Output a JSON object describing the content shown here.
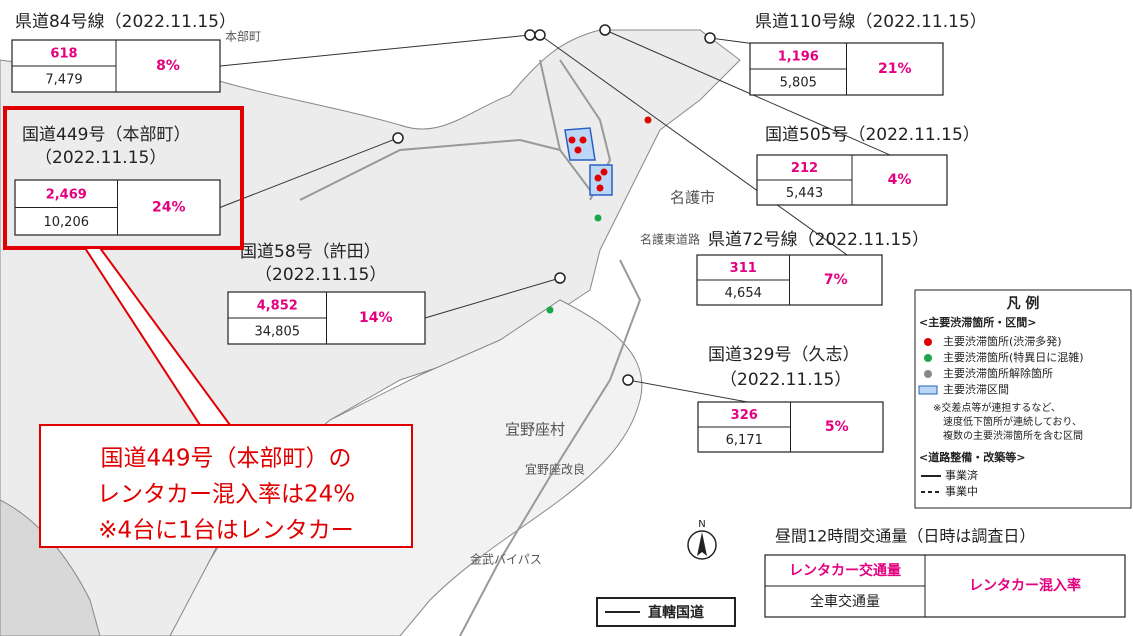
{
  "stations": [
    {
      "name": "県道84号線",
      "date": "（2022.11.15）",
      "rental": "618",
      "total": "7,479",
      "rate": "8%"
    },
    {
      "name": "県道110号線",
      "date": "（2022.11.15）",
      "rental": "1,196",
      "total": "5,805",
      "rate": "21%"
    },
    {
      "name": "国道505号",
      "date": "（2022.11.15）",
      "rental": "212",
      "total": "5,443",
      "rate": "4%"
    },
    {
      "name": "国道449号（本部町）",
      "date": "（2022.11.15）",
      "rental": "2,469",
      "total": "10,206",
      "rate": "24%"
    },
    {
      "name": "国道58号（許田）",
      "date": "（2022.11.15）",
      "rental": "4,852",
      "total": "34,805",
      "rate": "14%"
    },
    {
      "name": "県道72号線",
      "date": "（2022.11.15）",
      "rental": "311",
      "total": "4,654",
      "rate": "7%"
    },
    {
      "name": "国道329号（久志）",
      "date": "（2022.11.15）",
      "rental": "326",
      "total": "6,171",
      "rate": "5%"
    }
  ],
  "callout": [
    "国道449号（本部町）の",
    "レンタカー混入率は24%",
    "※4台に1台はレンタカー"
  ],
  "legend": {
    "title": "凡 例",
    "section1": "<主要渋滞箇所・区間>",
    "items": [
      "主要渋滞箇所(渋滞多発)",
      "主要渋滞箇所(特異日に混雑)",
      "主要渋滞箇所解除箇所",
      "主要渋滞区間"
    ],
    "note": [
      "※交差点等が連担するなど、",
      "速度低下箇所が連続しており、",
      "複数の主要渋滞箇所を含む区間"
    ],
    "section2": "<道路整備・改築等>",
    "lines": [
      "事業済",
      "事業中"
    ]
  },
  "key": {
    "caption": "昼間12時間交通量（日時は調査日）",
    "rental": "レンタカー交通量",
    "total": "全車交通量",
    "rate": "レンタカー混入率"
  },
  "direct_road": "直轄国道",
  "compass": "N",
  "map_labels": [
    "本部町",
    "名護市",
    "宜野座村",
    "名護東道路",
    "宜野座改良",
    "金武バイパス"
  ]
}
